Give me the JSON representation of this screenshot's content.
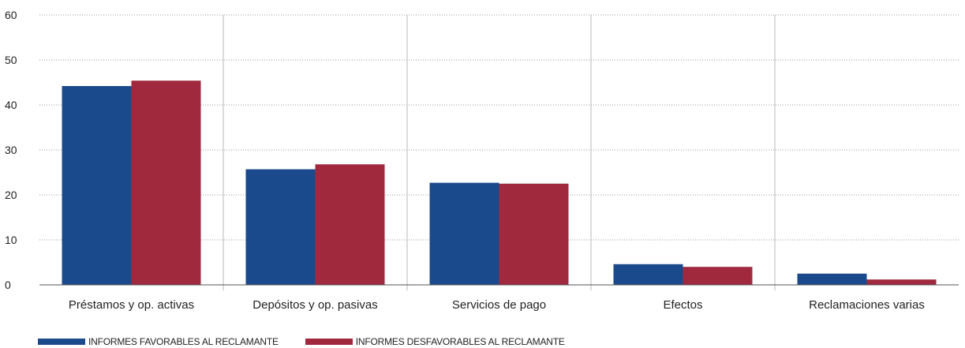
{
  "chart_data": {
    "type": "bar",
    "categories": [
      "Préstamos y op. activas",
      "Depósitos y op. pasivas",
      "Servicios de pago",
      "Efectos",
      "Reclamaciones varias"
    ],
    "series": [
      {
        "name": "INFORMES FAVORABLES AL RECLAMANTE",
        "color": "#1b4a8c",
        "values": [
          44.2,
          25.7,
          22.7,
          4.6,
          2.5
        ]
      },
      {
        "name": "INFORMES DESFAVORABLES AL RECLAMANTE",
        "color": "#a0293e",
        "values": [
          45.4,
          26.8,
          22.5,
          4.0,
          1.2
        ]
      }
    ],
    "y_ticks": [
      "0",
      "10",
      "20",
      "30",
      "40",
      "50",
      "60"
    ],
    "ylim": [
      0,
      60
    ],
    "grid": "horizontal dotted, vertical category separators",
    "legend_position": "bottom-left",
    "title": "",
    "xlabel": "",
    "ylabel": ""
  }
}
